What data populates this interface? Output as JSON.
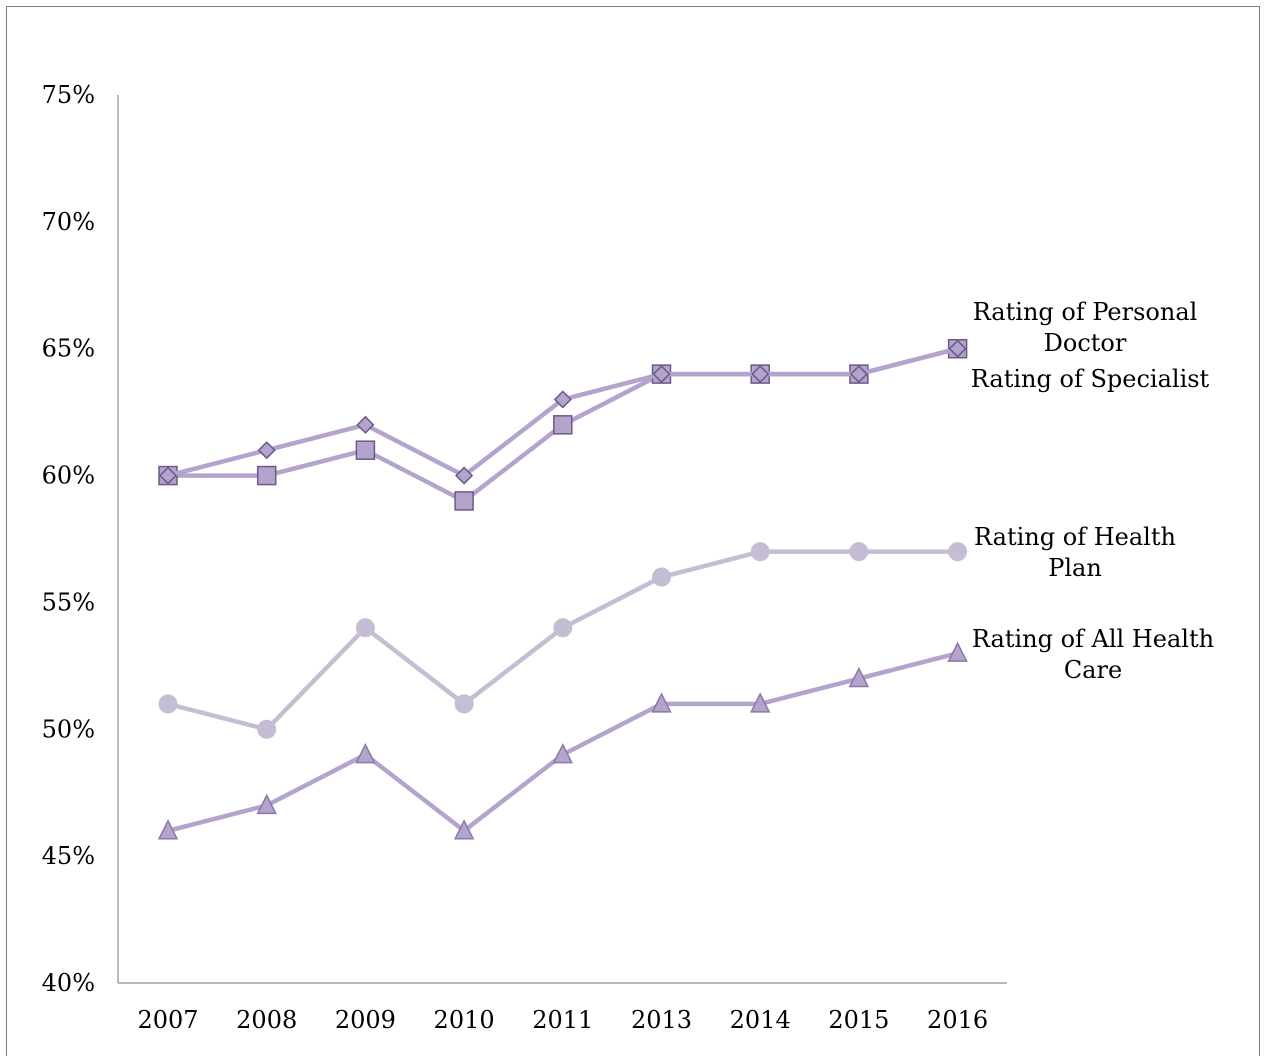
{
  "chart_data": {
    "type": "line",
    "title": "",
    "xlabel": "",
    "ylabel": "",
    "categories": [
      "2007",
      "2008",
      "2009",
      "2010",
      "2011",
      "2013",
      "2014",
      "2015",
      "2016"
    ],
    "ylim": [
      0.4,
      0.75
    ],
    "yticks": [
      "40%",
      "45%",
      "50%",
      "55%",
      "60%",
      "65%",
      "70%",
      "75%"
    ],
    "grid": false,
    "legend": "end-of-line labels on the right",
    "series": [
      {
        "name": "Rating of Personal Doctor",
        "label_lines": [
          "Rating of Personal",
          "Doctor"
        ],
        "marker": "diamond",
        "color": "#b4a3cc",
        "marker_fill": "#b4a3cc",
        "marker_stroke": "#6a5a85",
        "values": [
          0.6,
          0.61,
          0.62,
          0.6,
          0.63,
          0.64,
          0.64,
          0.64,
          0.65
        ]
      },
      {
        "name": "Rating of Specialist",
        "label_lines": [
          "Rating of Specialist"
        ],
        "marker": "square",
        "color": "#b4a3cc",
        "marker_fill": "#b4a3cc",
        "marker_stroke": "#6a5a85",
        "values": [
          0.6,
          0.6,
          0.61,
          0.59,
          0.62,
          0.64,
          0.64,
          0.64,
          0.65
        ]
      },
      {
        "name": "Rating of Health Plan",
        "label_lines": [
          "Rating of Health",
          "Plan"
        ],
        "marker": "circle",
        "color": "#c4bdd4",
        "marker_fill": "#c4bdd4",
        "marker_stroke": "#c4bdd4",
        "values": [
          0.51,
          0.5,
          0.54,
          0.51,
          0.54,
          0.56,
          0.57,
          0.57,
          0.57
        ]
      },
      {
        "name": "Rating of All Health Care",
        "label_lines": [
          "Rating of All Health",
          "Care"
        ],
        "marker": "triangle",
        "color": "#b4a3cc",
        "marker_fill": "#b4a3cc",
        "marker_stroke": "#8a78a8",
        "values": [
          0.46,
          0.47,
          0.49,
          0.46,
          0.49,
          0.51,
          0.51,
          0.52,
          0.53
        ]
      }
    ]
  }
}
